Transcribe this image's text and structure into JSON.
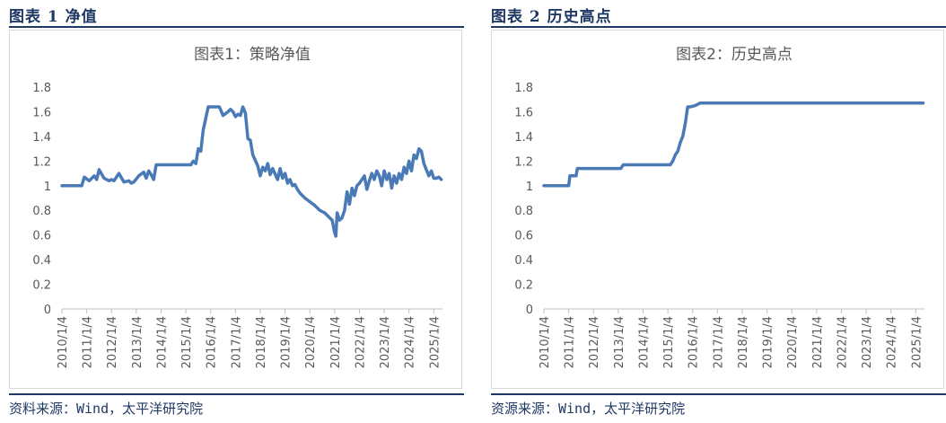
{
  "panels": [
    {
      "heading": "图表 1 净值",
      "source": "资料来源：Wind，太平洋研究院"
    },
    {
      "heading": "图表 2 历史高点",
      "source": "资源来源：Wind，太平洋研究院"
    }
  ],
  "chart_data": [
    {
      "type": "line",
      "title": "图表1：策略净值",
      "xlabel": "",
      "ylabel": "",
      "ylim": [
        0,
        1.8
      ],
      "yticks": [
        "0",
        "0.2",
        "0.4",
        "0.6",
        "0.8",
        "1",
        "1.2",
        "1.4",
        "1.6",
        "1.8"
      ],
      "xticks": [
        "2010/1/4",
        "2011/1/4",
        "2012/1/4",
        "2013/1/4",
        "2014/1/4",
        "2015/1/4",
        "2016/1/4",
        "2017/1/4",
        "2018/1/4",
        "2019/1/4",
        "2020/1/4",
        "2021/1/4",
        "2022/1/4",
        "2023/1/4",
        "2024/1/4",
        "2025/1/4"
      ],
      "grid": false,
      "legend": "none",
      "color": "#4a7ab5",
      "x": [
        2010.0,
        2010.8,
        2010.9,
        2011.1,
        2011.3,
        2011.4,
        2011.5,
        2011.7,
        2011.9,
        2012.0,
        2012.1,
        2012.3,
        2012.5,
        2012.7,
        2012.8,
        2012.9,
        2013.1,
        2013.3,
        2013.4,
        2013.5,
        2013.6,
        2013.7,
        2013.8,
        2014.0,
        2014.5,
        2015.0,
        2015.2,
        2015.3,
        2015.4,
        2015.5,
        2015.6,
        2015.7,
        2015.9,
        2016.0,
        2016.1,
        2016.2,
        2016.35,
        2016.5,
        2016.7,
        2016.8,
        2016.9,
        2017.0,
        2017.1,
        2017.2,
        2017.3,
        2017.4,
        2017.5,
        2017.6,
        2017.7,
        2017.9,
        2018.0,
        2018.1,
        2018.2,
        2018.3,
        2018.4,
        2018.5,
        2018.7,
        2018.8,
        2018.9,
        2019.0,
        2019.1,
        2019.2,
        2019.3,
        2019.4,
        2019.5,
        2019.6,
        2019.8,
        2020.0,
        2020.2,
        2020.4,
        2020.6,
        2020.8,
        2020.9,
        2021.0,
        2021.05,
        2021.1,
        2021.2,
        2021.3,
        2021.4,
        2021.5,
        2021.6,
        2021.7,
        2021.8,
        2021.9,
        2022.0,
        2022.1,
        2022.2,
        2022.3,
        2022.4,
        2022.5,
        2022.6,
        2022.7,
        2022.8,
        2022.9,
        2023.0,
        2023.1,
        2023.2,
        2023.3,
        2023.4,
        2023.5,
        2023.6,
        2023.7,
        2023.8,
        2023.9,
        2024.0,
        2024.1,
        2024.2,
        2024.3,
        2024.4,
        2024.5,
        2024.6,
        2024.7,
        2024.8,
        2024.9,
        2025.0,
        2025.1,
        2025.2,
        2025.3
      ],
      "y": [
        1.0,
        1.0,
        1.07,
        1.04,
        1.08,
        1.05,
        1.13,
        1.06,
        1.04,
        1.05,
        1.04,
        1.1,
        1.03,
        1.04,
        1.02,
        1.03,
        1.08,
        1.11,
        1.06,
        1.12,
        1.09,
        1.05,
        1.17,
        1.17,
        1.17,
        1.17,
        1.17,
        1.2,
        1.18,
        1.3,
        1.28,
        1.45,
        1.64,
        1.64,
        1.64,
        1.64,
        1.64,
        1.57,
        1.6,
        1.62,
        1.6,
        1.56,
        1.58,
        1.57,
        1.64,
        1.59,
        1.38,
        1.37,
        1.25,
        1.16,
        1.08,
        1.15,
        1.12,
        1.18,
        1.09,
        1.14,
        1.05,
        1.14,
        1.06,
        1.1,
        1.02,
        1.05,
        1.0,
        1.01,
        0.97,
        0.94,
        0.9,
        0.87,
        0.84,
        0.8,
        0.78,
        0.74,
        0.72,
        0.62,
        0.59,
        0.78,
        0.72,
        0.74,
        0.8,
        0.95,
        0.85,
        0.98,
        0.92,
        1.0,
        1.02,
        1.05,
        1.08,
        0.97,
        1.04,
        1.1,
        1.05,
        1.12,
        1.08,
        1.0,
        1.12,
        1.05,
        1.1,
        0.98,
        1.08,
        1.02,
        1.1,
        1.05,
        1.15,
        1.1,
        1.2,
        1.12,
        1.25,
        1.22,
        1.3,
        1.28,
        1.18,
        1.13,
        1.08,
        1.12,
        1.06,
        1.06,
        1.07,
        1.05
      ]
    },
    {
      "type": "line",
      "title": "图表2：历史高点",
      "xlabel": "",
      "ylabel": "",
      "ylim": [
        0,
        1.8
      ],
      "yticks": [
        "0",
        "0.2",
        "0.4",
        "0.6",
        "0.8",
        "1",
        "1.2",
        "1.4",
        "1.6",
        "1.8"
      ],
      "xticks": [
        "2010/1/4",
        "2011/1/4",
        "2012/1/4",
        "2013/1/4",
        "2014/1/4",
        "2015/1/4",
        "2016/1/4",
        "2017/1/4",
        "2018/1/4",
        "2019/1/4",
        "2020/1/4",
        "2021/1/4",
        "2022/1/4",
        "2023/1/4",
        "2024/1/4",
        "2025/1/4"
      ],
      "grid": false,
      "legend": "none",
      "color": "#4a7ab5",
      "x": [
        2010.0,
        2011.0,
        2011.05,
        2011.3,
        2011.35,
        2012.5,
        2013.1,
        2013.2,
        2014.6,
        2015.1,
        2015.2,
        2015.3,
        2015.4,
        2015.5,
        2015.6,
        2015.7,
        2015.8,
        2015.9,
        2016.1,
        2016.3,
        2016.4,
        2025.3
      ],
      "y": [
        1.0,
        1.0,
        1.08,
        1.08,
        1.14,
        1.14,
        1.14,
        1.17,
        1.17,
        1.17,
        1.2,
        1.25,
        1.28,
        1.35,
        1.4,
        1.5,
        1.64,
        1.64,
        1.65,
        1.67,
        1.67,
        1.67
      ]
    }
  ]
}
